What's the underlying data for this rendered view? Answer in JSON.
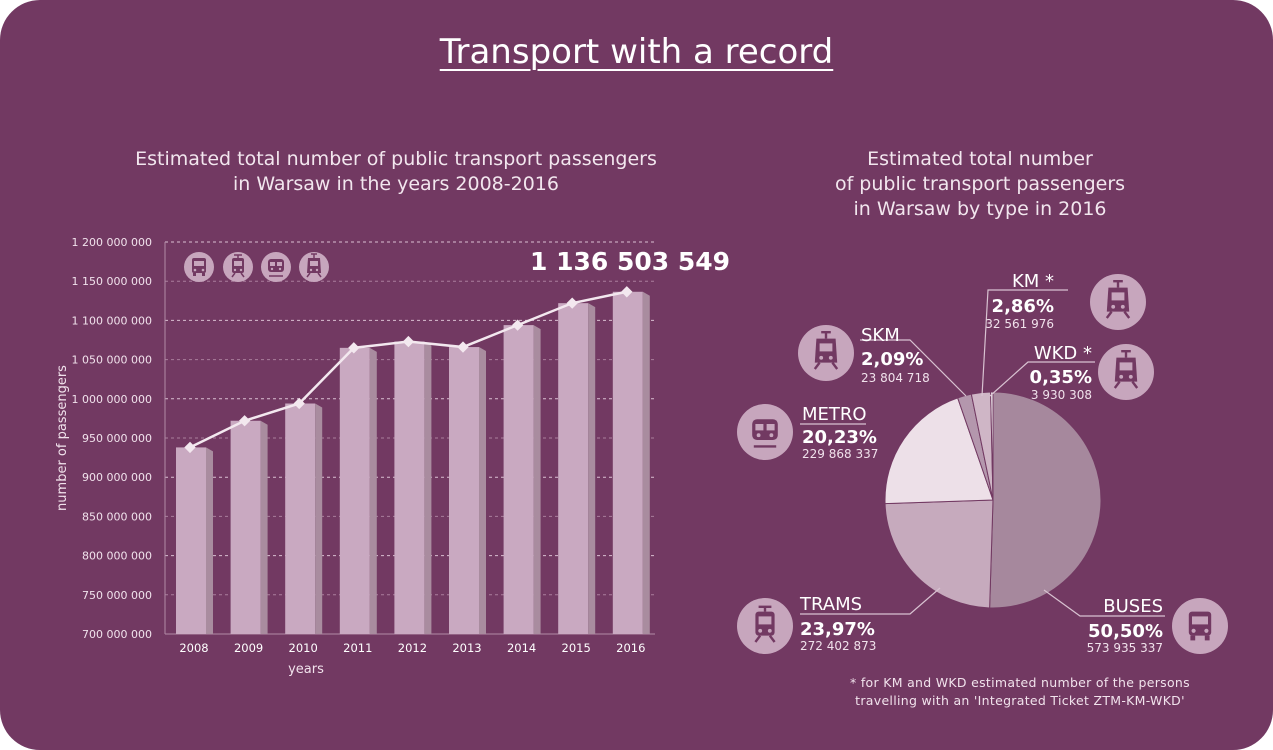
{
  "title": "Transport with a record",
  "left_chart_title": [
    "Estimated total number of public transport passengers",
    "in Warsaw in the years 2008-2016"
  ],
  "right_chart_title": [
    "Estimated total number",
    "of public transport passengers",
    "in Warsaw by type in 2016"
  ],
  "footnote": [
    "* for KM and WKD estimated number of the persons",
    "travelling with an 'Integrated Ticket ZTM-KM-WKD'"
  ],
  "colors": {
    "background": "#723962",
    "bar_front": "#c9a9c1",
    "bar_side": "#a98c9f",
    "line": "#f3e8ef",
    "buses": "#a6889d",
    "trams": "#c6aabd",
    "metro": "#ede0e8",
    "skm": "#b497ad",
    "km": "#cfb6c6",
    "wkd": "#ffffff"
  },
  "chart_data": [
    {
      "type": "bar",
      "title": "Estimated total number of public transport passengers in Warsaw in the years 2008-2016",
      "xlabel": "years",
      "ylabel": "number of passengers",
      "ylim": [
        700000000,
        1200000000
      ],
      "yticks": [
        "700 000 000",
        "750 000 000",
        "800 000 000",
        "850 000 000",
        "900 000 000",
        "950 000 000",
        "1 000 000 000",
        "1 050 000 000",
        "1 100 000 000",
        "1 150 000 000",
        "1 200 000 000"
      ],
      "ytick_values": [
        700000000,
        750000000,
        800000000,
        850000000,
        900000000,
        950000000,
        1000000000,
        1050000000,
        1100000000,
        1150000000,
        1200000000
      ],
      "categories": [
        "2008",
        "2009",
        "2010",
        "2011",
        "2012",
        "2013",
        "2014",
        "2015",
        "2016"
      ],
      "values": [
        938000000,
        972000000,
        994000000,
        1065000000,
        1073000000,
        1066000000,
        1094000000,
        1122000000,
        1136503549
      ],
      "line_overlay": true,
      "highlight_label": "1 136 503 549",
      "icons": [
        "bus-icon",
        "tram-icon",
        "metro-icon",
        "train-icon"
      ]
    },
    {
      "type": "pie",
      "title": "Estimated total number of public transport passengers in Warsaw by type in 2016",
      "slices": [
        {
          "name": "BUSES",
          "percent_label": "50,50%",
          "count_label": "573 935 337",
          "value": 50.5,
          "icon": "bus-icon"
        },
        {
          "name": "TRAMS",
          "percent_label": "23,97%",
          "count_label": "272 402 873",
          "value": 23.97,
          "icon": "tram-icon"
        },
        {
          "name": "METRO",
          "percent_label": "20,23%",
          "count_label": "229 868 337",
          "value": 20.23,
          "icon": "metro-icon"
        },
        {
          "name": "SKM",
          "percent_label": "2,09%",
          "count_label": "23 804 718",
          "value": 2.09,
          "icon": "train-icon"
        },
        {
          "name": "KM *",
          "percent_label": "2,86%",
          "count_label": "32 561 976",
          "value": 2.86,
          "icon": "train-icon"
        },
        {
          "name": "WKD *",
          "percent_label": "0,35%",
          "count_label": "3 930 308",
          "value": 0.35,
          "icon": "train-icon"
        }
      ]
    }
  ]
}
